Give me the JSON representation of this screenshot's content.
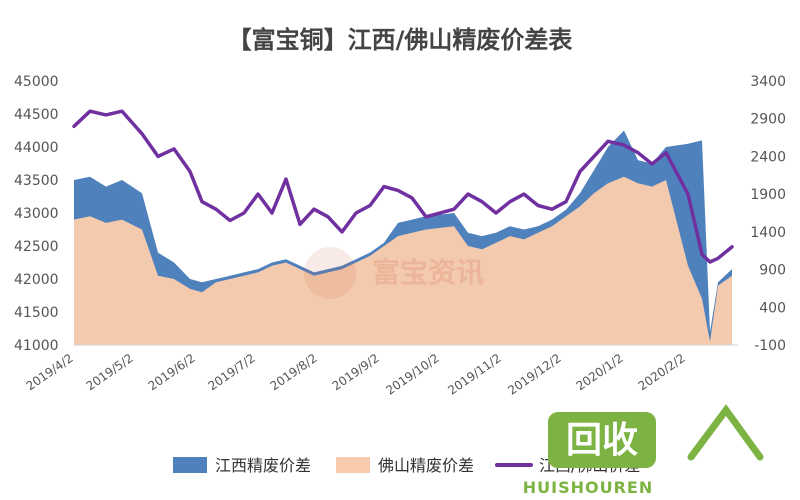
{
  "chart_data": {
    "type": "area",
    "title": "【富宝铜】江西/佛山精废价差表",
    "xlabel": "",
    "ylabel": "",
    "left_axis": {
      "ylim": [
        41000,
        45000
      ],
      "ticks": [
        "45000",
        "44500",
        "44000",
        "43500",
        "43000",
        "42500",
        "42000",
        "41500",
        "41000"
      ]
    },
    "right_axis": {
      "ylim": [
        -100,
        3400
      ],
      "ticks": [
        "3400",
        "2900",
        "2400",
        "1900",
        "1400",
        "900",
        "400",
        "-100"
      ]
    },
    "x_ticks": [
      "2019/4/2",
      "2019/5/2",
      "2019/6/2",
      "2019/7/2",
      "2019/8/2",
      "2019/9/2",
      "2019/10/2",
      "2019/11/2",
      "2019/12/2",
      "2020/1/2",
      "2020/2/2"
    ],
    "series": [
      {
        "name": "江西精废价差",
        "type": "area",
        "color": "#4f81bd",
        "x": [
          "2019/4/2",
          "2019/4/10",
          "2019/4/18",
          "2019/4/26",
          "2019/5/6",
          "2019/5/14",
          "2019/5/22",
          "2019/5/30",
          "2019/6/5",
          "2019/6/12",
          "2019/6/19",
          "2019/6/26",
          "2019/7/3",
          "2019/7/10",
          "2019/7/17",
          "2019/7/24",
          "2019/7/31",
          "2019/8/7",
          "2019/8/14",
          "2019/8/21",
          "2019/8/28",
          "2019/9/4",
          "2019/9/11",
          "2019/9/18",
          "2019/9/25",
          "2019/10/9",
          "2019/10/16",
          "2019/10/23",
          "2019/10/30",
          "2019/11/6",
          "2019/11/13",
          "2019/11/20",
          "2019/11/27",
          "2019/12/4",
          "2019/12/11",
          "2019/12/18",
          "2019/12/25",
          "2020/1/2",
          "2020/1/9",
          "2020/1/16",
          "2020/1/23",
          "2020/2/3",
          "2020/2/10",
          "2020/2/14",
          "2020/2/18",
          "2020/2/25"
        ],
        "values": [
          43500,
          43550,
          43400,
          43500,
          43300,
          42400,
          42250,
          42000,
          41950,
          42000,
          42050,
          42100,
          42150,
          42250,
          42300,
          42200,
          42100,
          42150,
          42200,
          42300,
          42400,
          42550,
          42850,
          42900,
          42950,
          43000,
          42700,
          42650,
          42700,
          42800,
          42750,
          42800,
          42900,
          43050,
          43300,
          43650,
          44000,
          44250,
          43800,
          43750,
          44000,
          44050,
          44100,
          41200,
          41950,
          42150
        ]
      },
      {
        "name": "佛山精废价差",
        "type": "area",
        "color": "#f8cbad",
        "x": [
          "2019/4/2",
          "2019/4/10",
          "2019/4/18",
          "2019/4/26",
          "2019/5/6",
          "2019/5/14",
          "2019/5/22",
          "2019/5/30",
          "2019/6/5",
          "2019/6/12",
          "2019/6/19",
          "2019/6/26",
          "2019/7/3",
          "2019/7/10",
          "2019/7/17",
          "2019/7/24",
          "2019/7/31",
          "2019/8/7",
          "2019/8/14",
          "2019/8/21",
          "2019/8/28",
          "2019/9/4",
          "2019/9/11",
          "2019/9/18",
          "2019/9/25",
          "2019/10/9",
          "2019/10/16",
          "2019/10/23",
          "2019/10/30",
          "2019/11/6",
          "2019/11/13",
          "2019/11/20",
          "2019/11/27",
          "2019/12/4",
          "2019/12/11",
          "2019/12/18",
          "2019/12/25",
          "2020/1/2",
          "2020/1/9",
          "2020/1/16",
          "2020/1/23",
          "2020/2/3",
          "2020/2/10",
          "2020/2/14",
          "2020/2/18",
          "2020/2/25"
        ],
        "values": [
          42900,
          42950,
          42850,
          42900,
          42750,
          42050,
          42000,
          41850,
          41800,
          41950,
          42000,
          42050,
          42100,
          42200,
          42250,
          42150,
          42050,
          42100,
          42150,
          42250,
          42350,
          42500,
          42650,
          42700,
          42750,
          42800,
          42500,
          42450,
          42550,
          42650,
          42600,
          42700,
          42800,
          42950,
          43100,
          43300,
          43450,
          43550,
          43450,
          43400,
          43500,
          42200,
          41700,
          41050,
          41900,
          42050
        ]
      },
      {
        "name": "江西/佛山价差",
        "type": "line",
        "color": "#7030a0",
        "x": [
          "2019/4/2",
          "2019/4/10",
          "2019/4/18",
          "2019/4/26",
          "2019/5/6",
          "2019/5/14",
          "2019/5/22",
          "2019/5/30",
          "2019/6/5",
          "2019/6/12",
          "2019/6/19",
          "2019/6/26",
          "2019/7/3",
          "2019/7/10",
          "2019/7/17",
          "2019/7/24",
          "2019/7/31",
          "2019/8/7",
          "2019/8/14",
          "2019/8/21",
          "2019/8/28",
          "2019/9/4",
          "2019/9/11",
          "2019/9/18",
          "2019/9/25",
          "2019/10/9",
          "2019/10/16",
          "2019/10/23",
          "2019/10/30",
          "2019/11/6",
          "2019/11/13",
          "2019/11/20",
          "2019/11/27",
          "2019/12/4",
          "2019/12/11",
          "2019/12/18",
          "2019/12/25",
          "2020/1/2",
          "2020/1/9",
          "2020/1/16",
          "2020/1/23",
          "2020/2/3",
          "2020/2/10",
          "2020/2/14",
          "2020/2/18",
          "2020/2/25"
        ],
        "values": [
          2800,
          3000,
          2950,
          3000,
          2700,
          2400,
          2500,
          2200,
          1800,
          1700,
          1550,
          1650,
          1900,
          1650,
          2100,
          1500,
          1700,
          1600,
          1400,
          1650,
          1750,
          2000,
          1950,
          1850,
          1600,
          1700,
          1900,
          1800,
          1650,
          1800,
          1900,
          1750,
          1700,
          1800,
          2200,
          2400,
          2600,
          2550,
          2450,
          2300,
          2450,
          1900,
          1100,
          1000,
          1050,
          1200
        ]
      }
    ],
    "legend": {
      "placement": "bottom",
      "items": [
        "江西精废价差",
        "佛山精废价差",
        "江西/佛山价差"
      ]
    },
    "grid": false
  },
  "watermark_text": "富宝资讯",
  "logo": {
    "text": "回收",
    "sub": "HUISHOUREN"
  }
}
